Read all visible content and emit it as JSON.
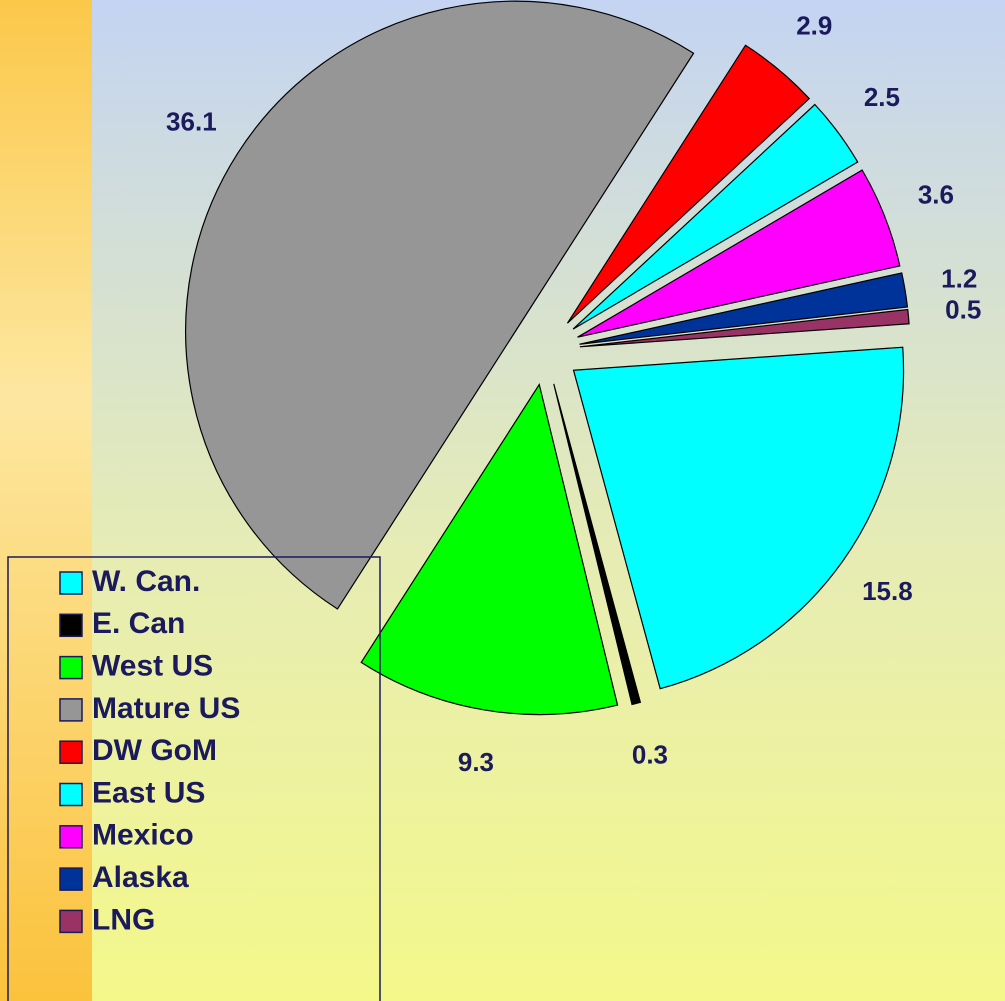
{
  "chart_data": {
    "type": "pie",
    "categories": [
      "W. Can.",
      "E. Can",
      "West US",
      "Mature US",
      "DW GoM",
      "East US",
      "Mexico",
      "Alaska",
      "LNG"
    ],
    "values": [
      15.8,
      0.3,
      9.3,
      36.1,
      2.9,
      2.5,
      3.6,
      1.2,
      0.5
    ],
    "colors": [
      "#00ffff",
      "#000000",
      "#00ff00",
      "#969696",
      "#ff0000",
      "#00ffff",
      "#ff00ff",
      "#003399",
      "#993366"
    ],
    "legend": "bottom-left"
  }
}
